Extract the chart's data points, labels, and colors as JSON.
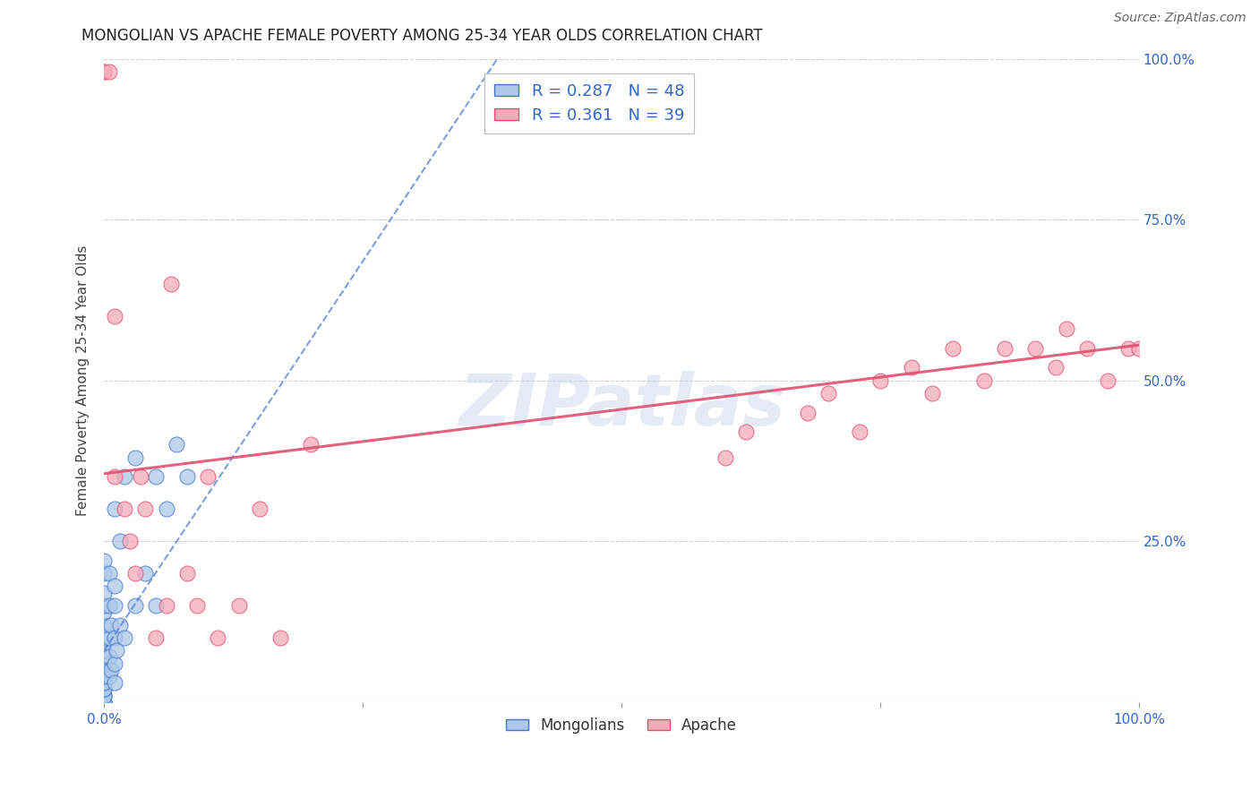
{
  "title": "MONGOLIAN VS APACHE FEMALE POVERTY AMONG 25-34 YEAR OLDS CORRELATION CHART",
  "source": "Source: ZipAtlas.com",
  "ylabel": "Female Poverty Among 25-34 Year Olds",
  "mongolian_R": 0.287,
  "mongolian_N": 48,
  "apache_R": 0.361,
  "apache_N": 39,
  "mongolian_color": "#adc8e8",
  "apache_color": "#f5aab8",
  "mongolian_line_color": "#4477cc",
  "apache_line_color": "#e05070",
  "watermark_text": "ZIPatlas",
  "mongolian_x": [
    0.0,
    0.0,
    0.0,
    0.0,
    0.0,
    0.0,
    0.0,
    0.0,
    0.0,
    0.0,
    0.0,
    0.0,
    0.0,
    0.0,
    0.0,
    0.0,
    0.0,
    0.0,
    0.0,
    0.0,
    0.0,
    0.0,
    0.005,
    0.005,
    0.005,
    0.005,
    0.005,
    0.007,
    0.007,
    0.01,
    0.01,
    0.01,
    0.01,
    0.01,
    0.01,
    0.012,
    0.015,
    0.015,
    0.02,
    0.02,
    0.03,
    0.03,
    0.04,
    0.05,
    0.05,
    0.06,
    0.07,
    0.08
  ],
  "mongolian_y": [
    0.0,
    0.0,
    0.0,
    0.01,
    0.01,
    0.02,
    0.02,
    0.03,
    0.03,
    0.04,
    0.05,
    0.06,
    0.07,
    0.08,
    0.09,
    0.1,
    0.12,
    0.14,
    0.15,
    0.17,
    0.2,
    0.22,
    0.04,
    0.07,
    0.1,
    0.15,
    0.2,
    0.05,
    0.12,
    0.03,
    0.06,
    0.1,
    0.15,
    0.18,
    0.3,
    0.08,
    0.12,
    0.25,
    0.1,
    0.35,
    0.15,
    0.38,
    0.2,
    0.15,
    0.35,
    0.3,
    0.4,
    0.35
  ],
  "apache_x": [
    0.0,
    0.0,
    0.005,
    0.01,
    0.01,
    0.02,
    0.025,
    0.03,
    0.035,
    0.04,
    0.05,
    0.06,
    0.065,
    0.08,
    0.09,
    0.1,
    0.11,
    0.13,
    0.15,
    0.17,
    0.2,
    0.6,
    0.62,
    0.68,
    0.7,
    0.73,
    0.75,
    0.78,
    0.8,
    0.82,
    0.85,
    0.87,
    0.9,
    0.92,
    0.93,
    0.95,
    0.97,
    0.99,
    1.0
  ],
  "apache_y": [
    0.98,
    0.98,
    0.98,
    0.6,
    0.35,
    0.3,
    0.25,
    0.2,
    0.35,
    0.3,
    0.1,
    0.15,
    0.65,
    0.2,
    0.15,
    0.35,
    0.1,
    0.15,
    0.3,
    0.1,
    0.4,
    0.38,
    0.42,
    0.45,
    0.48,
    0.42,
    0.5,
    0.52,
    0.48,
    0.55,
    0.5,
    0.55,
    0.55,
    0.52,
    0.58,
    0.55,
    0.5,
    0.55,
    0.55
  ],
  "xlim": [
    0.0,
    1.0
  ],
  "ylim": [
    0.0,
    1.0
  ],
  "ytick_positions": [
    0.0,
    0.25,
    0.5,
    0.75,
    1.0
  ],
  "ytick_labels": [
    "",
    "25.0%",
    "50.0%",
    "75.0%",
    "100.0%"
  ],
  "xtick_positions": [
    0.0,
    0.25,
    0.5,
    0.75,
    1.0
  ],
  "xtick_labels": [
    "0.0%",
    "",
    "",
    "",
    "100.0%"
  ],
  "grid_color": "#cccccc",
  "background_color": "#ffffff",
  "title_color": "#222222",
  "axis_label_color": "#444444",
  "tick_color": "#3366cc",
  "apache_trend_x0": 0.0,
  "apache_trend_y0": 0.355,
  "apache_trend_x1": 1.0,
  "apache_trend_y1": 0.555,
  "mongo_trend_x0": 0.0,
  "mongo_trend_y0": 0.08,
  "mongo_trend_x1": 0.38,
  "mongo_trend_y1": 1.0
}
